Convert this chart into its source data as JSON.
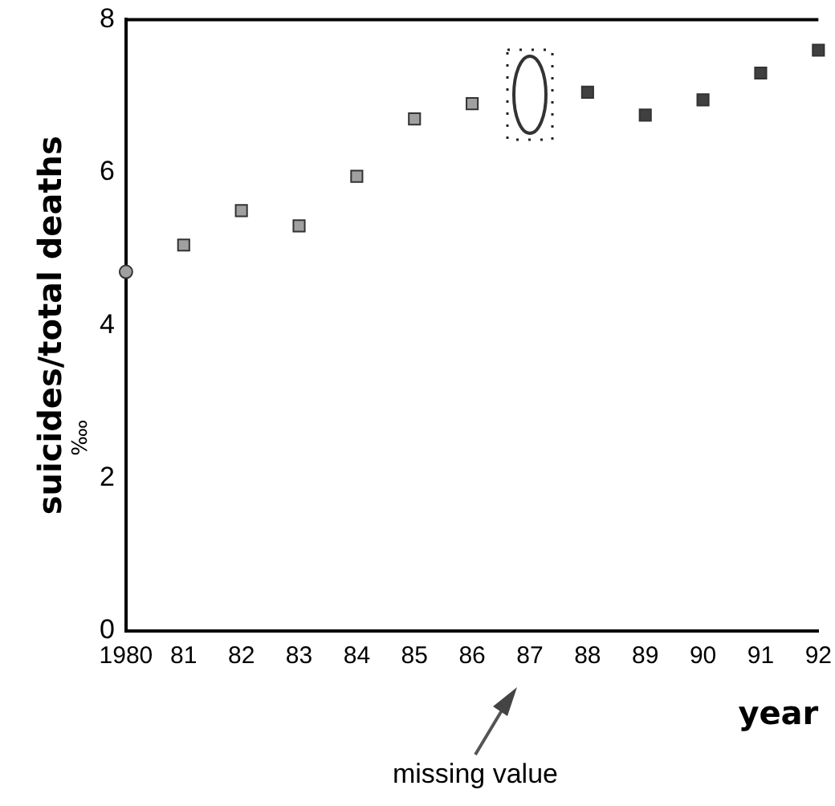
{
  "chart_data": {
    "type": "scatter",
    "xlabel": "year",
    "ylabel": "suicides/total deaths\n‱",
    "categories": [
      "1980",
      "81",
      "82",
      "83",
      "84",
      "85",
      "86",
      "87",
      "88",
      "89",
      "90",
      "91",
      "92"
    ],
    "series": [
      {
        "color": "#a0a0a0",
        "marker": "circle",
        "values": [
          4.7,
          null,
          null,
          null,
          null,
          null,
          null,
          null,
          null,
          null,
          null,
          null,
          null
        ]
      },
      {
        "color": "#a0a0a0",
        "marker": "square",
        "values": [
          null,
          5.05,
          5.5,
          5.3,
          5.95,
          6.7,
          6.9,
          null,
          null,
          null,
          null,
          null,
          null
        ]
      },
      {
        "color": "#404040",
        "marker": "square",
        "values": [
          null,
          null,
          null,
          null,
          null,
          null,
          null,
          null,
          7.05,
          6.75,
          6.95,
          7.3,
          7.6
        ]
      }
    ],
    "ylim": [
      0,
      8
    ],
    "yticks": [
      0,
      2,
      4,
      6,
      8
    ],
    "grid": false,
    "legend": false,
    "annotations": [
      "missing value"
    ]
  }
}
